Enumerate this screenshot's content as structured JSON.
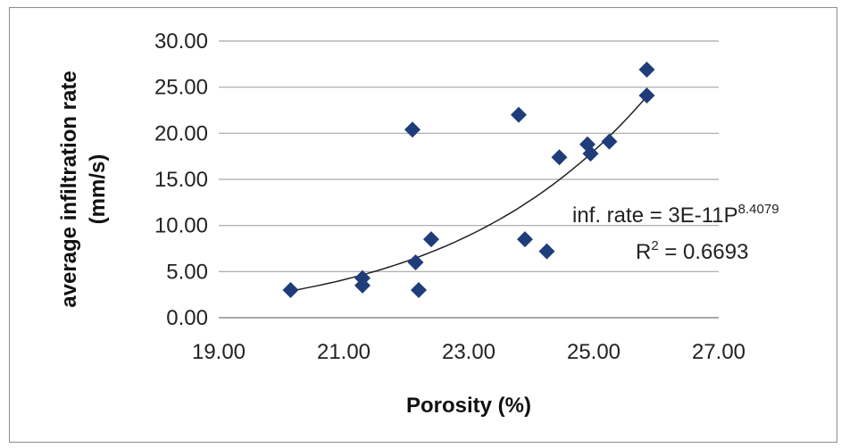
{
  "chart_data": {
    "type": "scatter",
    "xlabel": "Porosity (%)",
    "ylabel_line1": "average infiltration rate",
    "ylabel_line2": "(mm/s)",
    "xlim": [
      19,
      27
    ],
    "ylim": [
      0,
      30
    ],
    "x_ticks": [
      "19.00",
      "21.00",
      "23.00",
      "25.00",
      "27.00"
    ],
    "y_ticks": [
      "0.00",
      "5.00",
      "10.00",
      "15.00",
      "20.00",
      "25.00",
      "30.00"
    ],
    "grid": "horizontal",
    "marker": "diamond",
    "marker_color": "#1f3d7a",
    "points": [
      {
        "x": 20.15,
        "y": 3.0
      },
      {
        "x": 21.3,
        "y": 4.3
      },
      {
        "x": 21.3,
        "y": 3.5
      },
      {
        "x": 22.1,
        "y": 20.4
      },
      {
        "x": 22.15,
        "y": 6.0
      },
      {
        "x": 22.2,
        "y": 3.0
      },
      {
        "x": 22.4,
        "y": 8.5
      },
      {
        "x": 23.8,
        "y": 22.0
      },
      {
        "x": 23.9,
        "y": 8.5
      },
      {
        "x": 24.25,
        "y": 7.2
      },
      {
        "x": 24.45,
        "y": 17.4
      },
      {
        "x": 24.9,
        "y": 18.8
      },
      {
        "x": 24.95,
        "y": 17.8
      },
      {
        "x": 25.25,
        "y": 19.1
      },
      {
        "x": 25.85,
        "y": 24.1
      },
      {
        "x": 25.85,
        "y": 26.9
      }
    ],
    "trendline": {
      "type": "power",
      "equation_prefix": "inf. rate = 3E-11P",
      "equation_exponent": "8.4079",
      "r2_prefix": "R",
      "r2_sup": "2",
      "r2_suffix": " = 0.6693",
      "x_range": [
        20.15,
        25.85
      ],
      "color": "#222222"
    }
  }
}
